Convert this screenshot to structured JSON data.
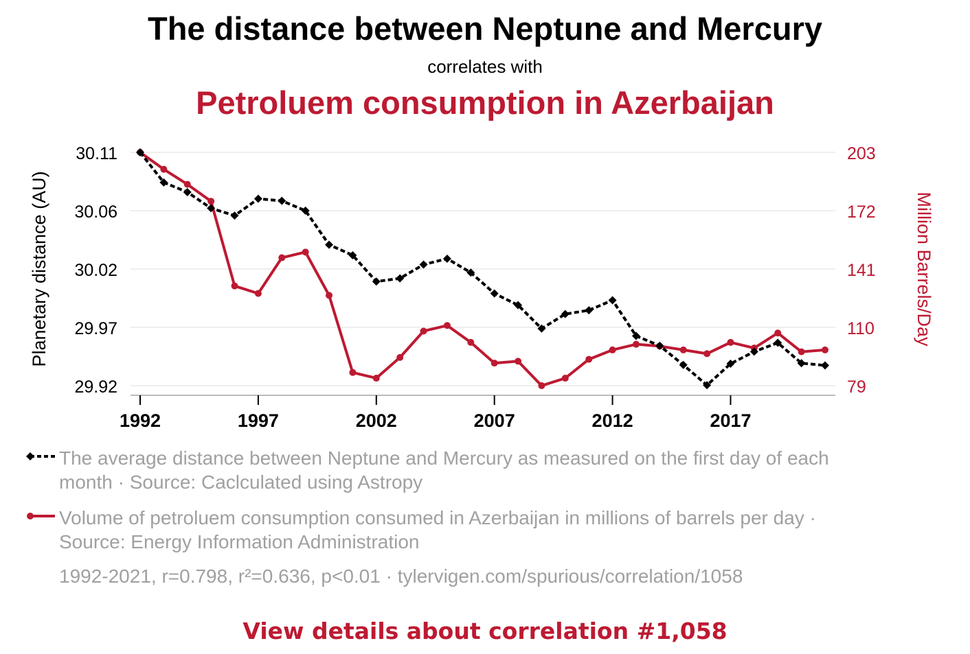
{
  "header": {
    "title": "The distance between Neptune and Mercury",
    "subtitle": "correlates with",
    "title2": "Petroluem consumption in Azerbaijan"
  },
  "colors": {
    "series1": "#000000",
    "series2": "#bd1a32",
    "muted": "#a0a0a0",
    "grid": "#eeeeee"
  },
  "chart_data": {
    "type": "line",
    "x": [
      1992,
      1993,
      1994,
      1995,
      1996,
      1997,
      1998,
      1999,
      2000,
      2001,
      2002,
      2003,
      2004,
      2005,
      2006,
      2007,
      2008,
      2009,
      2010,
      2011,
      2012,
      2013,
      2014,
      2015,
      2016,
      2017,
      2018,
      2019,
      2020,
      2021
    ],
    "x_ticks": [
      "1992",
      "1997",
      "2002",
      "2007",
      "2012",
      "2017"
    ],
    "xlim": [
      1992,
      2021
    ],
    "y_left": {
      "label": "Planetary distance (AU)",
      "ticks": [
        "29.92",
        "29.97",
        "30.02",
        "30.06",
        "30.11"
      ],
      "ylim": [
        29.92,
        30.11
      ]
    },
    "y_right": {
      "label": "Million Barrels/Day",
      "ticks": [
        "79",
        "110",
        "141",
        "172",
        "203"
      ],
      "ylim": [
        79,
        203
      ]
    },
    "grid": true,
    "series": [
      {
        "axis": "left",
        "style": "dashed-diamond",
        "values": [
          30.11,
          30.0855,
          30.0776,
          30.0645,
          30.0585,
          30.0722,
          30.0705,
          30.0625,
          30.0348,
          30.0262,
          30.0048,
          30.0074,
          30.0186,
          30.0234,
          30.0121,
          29.9951,
          29.9856,
          29.9665,
          29.9783,
          29.9814,
          29.9896,
          29.9605,
          29.9525,
          29.9369,
          29.9204,
          29.9379,
          29.9477,
          29.9549,
          29.9383,
          29.9365
        ]
      },
      {
        "axis": "right",
        "style": "solid-dot",
        "values": [
          203,
          194,
          186,
          177,
          132,
          128,
          147,
          150,
          127,
          86,
          83,
          94,
          108,
          111,
          102,
          91,
          92,
          79,
          83,
          93,
          98,
          101,
          100,
          98,
          96,
          102,
          99,
          107,
          97,
          98
        ]
      }
    ]
  },
  "legend": {
    "series1": "The average distance between Neptune and Mercury as measured on the first day of each month · Source: Caclculated using Astropy",
    "series2": "Volume of petroluem consumption consumed in Azerbaijan in millions of barrels per day · Source: Energy Information Administration"
  },
  "note": "1992-2021, r=0.798, r²=0.636, p<0.01 · tylervigen.com/spurious/correlation/1058",
  "link": "View details about correlation #1,058"
}
